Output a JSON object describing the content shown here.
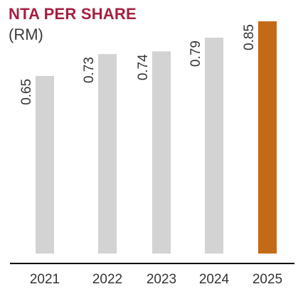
{
  "chart_data": {
    "type": "bar",
    "title": "NTA PER SHARE",
    "subtitle": "(RM)",
    "categories": [
      "2021",
      "2022",
      "2023",
      "2024",
      "2025"
    ],
    "values": [
      0.65,
      0.73,
      0.74,
      0.79,
      0.85
    ],
    "data_labels": [
      "0.65",
      "0.73",
      "0.74",
      "0.79",
      "0.85"
    ],
    "colors": {
      "default_bar": "#d3d3d3",
      "highlight_bar": "#c46a17",
      "title": "#a5203f",
      "text": "#333333",
      "axis": "#000000"
    },
    "highlight_index": 4,
    "ylim": [
      0,
      0.85
    ],
    "grid": false,
    "legend": "none"
  }
}
